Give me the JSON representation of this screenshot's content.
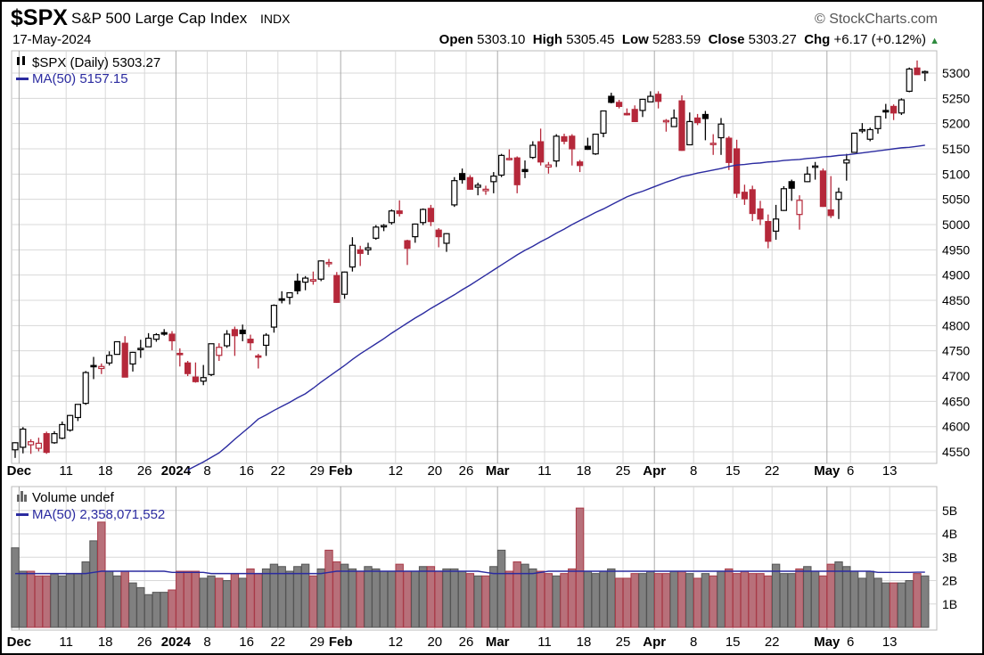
{
  "header": {
    "symbol": "$SPX",
    "name": "S&P 500 Large Cap Index",
    "exchange": "INDX",
    "copyright": "© StockCharts.com",
    "date": "17-May-2024",
    "open_label": "Open",
    "open": "5303.10",
    "high_label": "High",
    "high": "5305.45",
    "low_label": "Low",
    "low": "5283.59",
    "close_label": "Close",
    "close": "5303.27",
    "chg_label": "Chg",
    "chg": "+6.17 (+0.12%)",
    "chg_icon": "triangle-up-icon"
  },
  "colors": {
    "down": "#b5283a",
    "down_volume": "#b8707a",
    "up_volume": "#808080",
    "ma": "#2b2ba0",
    "grid": "#d8d8d8"
  },
  "chart_data": [
    {
      "type": "candlestick",
      "legend": {
        "price": "$SPX (Daily) 5303.27",
        "ma": "MA(50) 5157.15"
      },
      "ylim": [
        4530,
        5330
      ],
      "yticks": [
        4550,
        4600,
        4650,
        4700,
        4750,
        4800,
        4850,
        4900,
        4950,
        5000,
        5050,
        5100,
        5150,
        5200,
        5250,
        5300
      ],
      "grid": true,
      "xticks": [
        {
          "label": "Dec",
          "i": 1,
          "major": true
        },
        {
          "label": "11",
          "i": 7
        },
        {
          "label": "18",
          "i": 12
        },
        {
          "label": "26",
          "i": 17
        },
        {
          "label": "2024",
          "i": 21,
          "major": true
        },
        {
          "label": "8",
          "i": 25
        },
        {
          "label": "16",
          "i": 30
        },
        {
          "label": "22",
          "i": 34
        },
        {
          "label": "29",
          "i": 39
        },
        {
          "label": "Feb",
          "i": 42,
          "major": true
        },
        {
          "label": "12",
          "i": 49
        },
        {
          "label": "20",
          "i": 54
        },
        {
          "label": "26",
          "i": 58
        },
        {
          "label": "Mar",
          "i": 62,
          "major": true
        },
        {
          "label": "11",
          "i": 68
        },
        {
          "label": "18",
          "i": 73
        },
        {
          "label": "25",
          "i": 78
        },
        {
          "label": "Apr",
          "i": 82,
          "major": true
        },
        {
          "label": "8",
          "i": 87
        },
        {
          "label": "15",
          "i": 92
        },
        {
          "label": "22",
          "i": 97
        },
        {
          "label": "May",
          "i": 104,
          "major": true
        },
        {
          "label": "6",
          "i": 107
        },
        {
          "label": "13",
          "i": 112
        }
      ],
      "ohlc": [
        [
          4554,
          4569,
          4538,
          4568
        ],
        [
          4559,
          4599,
          4547,
          4595
        ],
        [
          4564,
          4575,
          4546,
          4570
        ],
        [
          4557,
          4578,
          4551,
          4567
        ],
        [
          4586,
          4590,
          4546,
          4549
        ],
        [
          4568,
          4591,
          4566,
          4586
        ],
        [
          4577,
          4610,
          4575,
          4604
        ],
        [
          4593,
          4623,
          4590,
          4622
        ],
        [
          4618,
          4644,
          4611,
          4644
        ],
        [
          4646,
          4710,
          4643,
          4707
        ],
        [
          4721,
          4738,
          4694,
          4720
        ],
        [
          4715,
          4725,
          4704,
          4719
        ],
        [
          4726,
          4749,
          4721,
          4741
        ],
        [
          4743,
          4768,
          4743,
          4768
        ],
        [
          4765,
          4779,
          4698,
          4698
        ],
        [
          4724,
          4748,
          4709,
          4747
        ],
        [
          4753,
          4772,
          4736,
          4755
        ],
        [
          4758,
          4785,
          4758,
          4775
        ],
        [
          4773,
          4785,
          4768,
          4782
        ],
        [
          4786,
          4793,
          4780,
          4783
        ],
        [
          4783,
          4789,
          4751,
          4770
        ],
        [
          4745,
          4755,
          4719,
          4743
        ],
        [
          4726,
          4730,
          4700,
          4705
        ],
        [
          4698,
          4727,
          4687,
          4689
        ],
        [
          4690,
          4722,
          4682,
          4697
        ],
        [
          4703,
          4764,
          4700,
          4764
        ],
        [
          4741,
          4765,
          4730,
          4757
        ],
        [
          4760,
          4791,
          4756,
          4783
        ],
        [
          4792,
          4798,
          4740,
          4780
        ],
        [
          4791,
          4802,
          4769,
          4784
        ],
        [
          4773,
          4782,
          4751,
          4766
        ],
        [
          4740,
          4744,
          4715,
          4739
        ],
        [
          4761,
          4785,
          4740,
          4781
        ],
        [
          4797,
          4842,
          4786,
          4840
        ],
        [
          4853,
          4868,
          4844,
          4850
        ],
        [
          4856,
          4866,
          4842,
          4865
        ],
        [
          4888,
          4903,
          4862,
          4869
        ],
        [
          4886,
          4898,
          4870,
          4894
        ],
        [
          4888,
          4907,
          4881,
          4891
        ],
        [
          4892,
          4929,
          4888,
          4928
        ],
        [
          4925,
          4932,
          4916,
          4925
        ],
        [
          4899,
          4906,
          4845,
          4846
        ],
        [
          4862,
          4907,
          4853,
          4906
        ],
        [
          4916,
          4975,
          4907,
          4959
        ],
        [
          4950,
          4958,
          4918,
          4943
        ],
        [
          4950,
          4964,
          4940,
          4954
        ],
        [
          4973,
          4999,
          4970,
          4995
        ],
        [
          4996,
          5001,
          4987,
          4998
        ],
        [
          5004,
          5030,
          5000,
          5027
        ],
        [
          5027,
          5048,
          5016,
          5022
        ],
        [
          4968,
          4970,
          4920,
          4953
        ],
        [
          4976,
          5002,
          4964,
          5001
        ],
        [
          5004,
          5032,
          4999,
          5030
        ],
        [
          5032,
          5039,
          4997,
          5006
        ],
        [
          4989,
          4993,
          4955,
          4976
        ],
        [
          4963,
          4983,
          4946,
          4982
        ],
        [
          5039,
          5094,
          5035,
          5087
        ],
        [
          5101,
          5111,
          5081,
          5089
        ],
        [
          5093,
          5098,
          5069,
          5070
        ],
        [
          5074,
          5083,
          5058,
          5078
        ],
        [
          5067,
          5077,
          5059,
          5070
        ],
        [
          5085,
          5104,
          5062,
          5096
        ],
        [
          5098,
          5140,
          5094,
          5137
        ],
        [
          5131,
          5149,
          5127,
          5131
        ],
        [
          5132,
          5135,
          5062,
          5079
        ],
        [
          5109,
          5127,
          5092,
          5105
        ],
        [
          5133,
          5165,
          5130,
          5157
        ],
        [
          5164,
          5190,
          5117,
          5124
        ],
        [
          5114,
          5124,
          5101,
          5118
        ],
        [
          5126,
          5179,
          5114,
          5175
        ],
        [
          5174,
          5180,
          5159,
          5165
        ],
        [
          5175,
          5179,
          5117,
          5150
        ],
        [
          5124,
          5128,
          5104,
          5117
        ],
        [
          5155,
          5172,
          5148,
          5149
        ],
        [
          5140,
          5179,
          5138,
          5179
        ],
        [
          5181,
          5225,
          5173,
          5225
        ],
        [
          5254,
          5261,
          5240,
          5242
        ],
        [
          5242,
          5247,
          5230,
          5234
        ],
        [
          5220,
          5230,
          5216,
          5218
        ],
        [
          5228,
          5236,
          5203,
          5204
        ],
        [
          5226,
          5249,
          5213,
          5248
        ],
        [
          5243,
          5264,
          5243,
          5254
        ],
        [
          5258,
          5264,
          5230,
          5244
        ],
        [
          5205,
          5209,
          5184,
          5206
        ],
        [
          5194,
          5228,
          5194,
          5211
        ],
        [
          5245,
          5256,
          5146,
          5147
        ],
        [
          5158,
          5222,
          5157,
          5204
        ],
        [
          5211,
          5219,
          5197,
          5202
        ],
        [
          5218,
          5225,
          5167,
          5210
        ],
        [
          5161,
          5179,
          5138,
          5161
        ],
        [
          5172,
          5211,
          5138,
          5199
        ],
        [
          5171,
          5175,
          5108,
          5123
        ],
        [
          5150,
          5168,
          5053,
          5062
        ],
        [
          5064,
          5079,
          5039,
          5051
        ],
        [
          5069,
          5077,
          5007,
          5022
        ],
        [
          5031,
          5047,
          4999,
          5011
        ],
        [
          5006,
          5020,
          4953,
          4967
        ],
        [
          4987,
          5039,
          4970,
          5011
        ],
        [
          5028,
          5076,
          5027,
          5071
        ],
        [
          5085,
          5089,
          5047,
          5072
        ],
        [
          5020,
          5058,
          4990,
          5048
        ],
        [
          5085,
          5115,
          5084,
          5100
        ],
        [
          5115,
          5124,
          5089,
          5116
        ],
        [
          5106,
          5111,
          5035,
          5036
        ],
        [
          5029,
          5096,
          5013,
          5018
        ],
        [
          5050,
          5073,
          5011,
          5064
        ],
        [
          5122,
          5140,
          5087,
          5128
        ],
        [
          5143,
          5181,
          5143,
          5181
        ],
        [
          5188,
          5201,
          5181,
          5188
        ],
        [
          5169,
          5192,
          5165,
          5188
        ],
        [
          5190,
          5215,
          5180,
          5214
        ],
        [
          5226,
          5239,
          5210,
          5223
        ],
        [
          5234,
          5238,
          5207,
          5221
        ],
        [
          5221,
          5250,
          5217,
          5247
        ],
        [
          5264,
          5311,
          5262,
          5308
        ],
        [
          5310,
          5325,
          5297,
          5297
        ],
        [
          5303,
          5305,
          5284,
          5303
        ]
      ],
      "ma50": [
        null,
        null,
        null,
        null,
        null,
        null,
        null,
        null,
        null,
        null,
        null,
        null,
        null,
        null,
        null,
        null,
        null,
        null,
        null,
        null,
        null,
        null,
        4514,
        4522,
        4530,
        4539,
        4548,
        4561,
        4575,
        4588,
        4601,
        4615,
        4623,
        4632,
        4640,
        4648,
        4657,
        4665,
        4676,
        4688,
        4699,
        4710,
        4721,
        4733,
        4744,
        4754,
        4764,
        4774,
        4785,
        4795,
        4805,
        4815,
        4824,
        4834,
        4843,
        4852,
        4861,
        4871,
        4880,
        4890,
        4900,
        4910,
        4920,
        4930,
        4940,
        4949,
        4957,
        4966,
        4974,
        4983,
        4991,
        5000,
        5008,
        5016,
        5024,
        5031,
        5039,
        5047,
        5055,
        5061,
        5066,
        5072,
        5078,
        5084,
        5089,
        5095,
        5098,
        5102,
        5105,
        5108,
        5111,
        5115,
        5118,
        5119,
        5121,
        5122,
        5124,
        5125,
        5127,
        5128,
        5129,
        5131,
        5132,
        5134,
        5135,
        5137,
        5138,
        5140,
        5142,
        5144,
        5146,
        5148,
        5150,
        5152,
        5153,
        5155,
        5157.15
      ]
    },
    {
      "type": "bar",
      "legend": {
        "volume": "Volume undef",
        "ma": "MA(50) 2,358,071,552"
      },
      "unit": "B",
      "ylim": [
        0,
        6
      ],
      "yticks": [
        {
          "v": 1,
          "label": "1B"
        },
        {
          "v": 2,
          "label": "2B"
        },
        {
          "v": 3,
          "label": "3B"
        },
        {
          "v": 4,
          "label": "4B"
        },
        {
          "v": 5,
          "label": "5B"
        }
      ],
      "volume": [
        3.4,
        2.4,
        2.4,
        2.2,
        2.2,
        2.3,
        2.2,
        2.3,
        2.3,
        2.8,
        3.7,
        4.5,
        2.4,
        2.2,
        2.4,
        1.9,
        1.7,
        1.4,
        1.5,
        1.5,
        1.6,
        2.4,
        2.4,
        2.4,
        2.1,
        2.2,
        2.1,
        2.0,
        2.3,
        2.1,
        2.5,
        2.3,
        2.5,
        2.7,
        2.6,
        2.4,
        2.6,
        2.7,
        2.2,
        2.5,
        3.3,
        2.8,
        2.7,
        2.5,
        2.4,
        2.6,
        2.5,
        2.4,
        2.4,
        2.7,
        2.4,
        2.4,
        2.6,
        2.6,
        2.4,
        2.5,
        2.5,
        2.4,
        2.3,
        2.2,
        2.2,
        2.6,
        3.3,
        2.4,
        2.8,
        2.7,
        2.5,
        2.4,
        2.3,
        2.2,
        2.3,
        2.5,
        5.1,
        2.4,
        2.3,
        2.4,
        2.5,
        2.1,
        2.1,
        2.3,
        2.3,
        2.4,
        2.3,
        2.3,
        2.4,
        2.4,
        2.3,
        2.1,
        2.3,
        2.2,
        2.4,
        2.5,
        2.3,
        2.4,
        2.3,
        2.3,
        2.2,
        2.7,
        2.3,
        2.3,
        2.5,
        2.6,
        2.4,
        2.2,
        2.7,
        2.8,
        2.6,
        2.4,
        2.1,
        2.4,
        2.1,
        1.9,
        1.9,
        1.9,
        2.0,
        2.3,
        2.2
      ],
      "ma50": [
        2.3,
        2.3,
        2.3,
        2.3,
        2.3,
        2.3,
        2.3,
        2.3,
        2.3,
        2.3,
        2.35,
        2.4,
        2.4,
        2.4,
        2.4,
        2.4,
        2.4,
        2.4,
        2.4,
        2.4,
        2.35,
        2.35,
        2.35,
        2.35,
        2.35,
        2.3,
        2.3,
        2.3,
        2.3,
        2.3,
        2.3,
        2.3,
        2.3,
        2.3,
        2.3,
        2.3,
        2.3,
        2.3,
        2.3,
        2.3,
        2.35,
        2.4,
        2.4,
        2.4,
        2.4,
        2.4,
        2.4,
        2.4,
        2.4,
        2.4,
        2.4,
        2.4,
        2.4,
        2.4,
        2.4,
        2.4,
        2.4,
        2.4,
        2.4,
        2.4,
        2.35,
        2.3,
        2.3,
        2.3,
        2.3,
        2.3,
        2.3,
        2.35,
        2.4,
        2.4,
        2.4,
        2.4,
        2.4,
        2.4,
        2.4,
        2.4,
        2.4,
        2.4,
        2.4,
        2.4,
        2.4,
        2.4,
        2.4,
        2.4,
        2.4,
        2.4,
        2.4,
        2.4,
        2.4,
        2.4,
        2.4,
        2.4,
        2.4,
        2.4,
        2.4,
        2.4,
        2.4,
        2.4,
        2.4,
        2.4,
        2.4,
        2.4,
        2.4,
        2.4,
        2.4,
        2.4,
        2.4,
        2.4,
        2.4,
        2.4,
        2.35,
        2.35,
        2.35,
        2.35,
        2.35,
        2.36,
        2.36
      ]
    }
  ]
}
